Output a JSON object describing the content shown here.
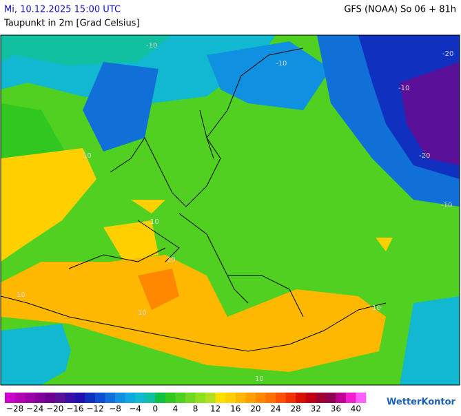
{
  "header": {
    "timestamp": "Mi, 10.12.2025 15:00 UTC",
    "subtitle": "Taupunkt in 2m [Grad Celsius]",
    "model": "GFS (NOAA) So 06 + 81h"
  },
  "map": {
    "contour_labels": [
      "-10",
      "-10",
      "-10",
      "-20",
      "-20",
      "-10",
      "10",
      "10",
      "10",
      "10",
      "10",
      "10",
      "10"
    ]
  },
  "legend": {
    "colors": [
      "#cc00cc",
      "#b400b4",
      "#9c00a8",
      "#84009c",
      "#6c0090",
      "#5a1098",
      "#3810a8",
      "#2010b0",
      "#1030c0",
      "#1050d0",
      "#1070d8",
      "#1090e0",
      "#10a8e0",
      "#10b8d0",
      "#10c0a0",
      "#10c040",
      "#30c820",
      "#50d020",
      "#70d820",
      "#90e020",
      "#b0e020",
      "#ffe000",
      "#ffd000",
      "#ffb800",
      "#ffa000",
      "#ff8800",
      "#ff7000",
      "#ff5000",
      "#f03000",
      "#d81000",
      "#c00010",
      "#a00030",
      "#900050",
      "#c00090",
      "#f020d0",
      "#ff60ff"
    ],
    "range": [
      -30,
      42
    ],
    "ticks": [
      {
        "value": -28,
        "label": "−28"
      },
      {
        "value": -24,
        "label": "−24"
      },
      {
        "value": -20,
        "label": "−20"
      },
      {
        "value": -16,
        "label": "−16"
      },
      {
        "value": -12,
        "label": "−12"
      },
      {
        "value": -8,
        "label": "−8"
      },
      {
        "value": -4,
        "label": "−4"
      },
      0,
      4,
      8,
      12,
      16,
      20,
      24,
      28,
      32,
      36,
      40
    ]
  },
  "brand": "WetterKontor"
}
